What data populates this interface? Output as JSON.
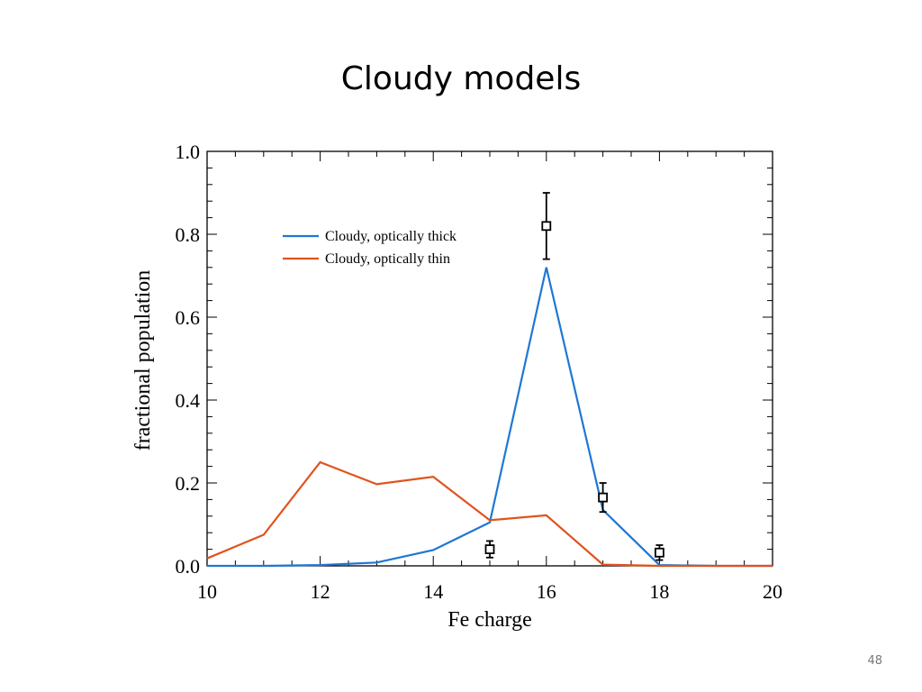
{
  "slide": {
    "title": "Cloudy models",
    "page_number": "48"
  },
  "colors": {
    "thick": "#1f77d4",
    "thin": "#e0521c",
    "axis": "#000000",
    "observed": "#000000"
  },
  "chart_data": {
    "type": "line",
    "title": "",
    "xlabel": "Fe charge",
    "ylabel": "fractional population",
    "xlim": [
      10,
      20
    ],
    "ylim": [
      0,
      1.0
    ],
    "xticks": [
      10,
      12,
      14,
      16,
      18,
      20
    ],
    "xtick_labels": [
      "10",
      "12",
      "14",
      "16",
      "18",
      "20"
    ],
    "yticks": [
      0,
      0.2,
      0.4,
      0.6,
      0.8,
      1.0
    ],
    "ytick_labels": [
      "0.0",
      "0.2",
      "0.4",
      "0.6",
      "0.8",
      "1.0"
    ],
    "grid": false,
    "legend_position": "upper-left",
    "series": [
      {
        "name": "Cloudy, optically thick",
        "color": "#1f77d4",
        "x": [
          10,
          11,
          12,
          13,
          14,
          15,
          16,
          17,
          18,
          19,
          20
        ],
        "y": [
          0.0,
          0.0,
          0.002,
          0.008,
          0.038,
          0.105,
          0.72,
          0.135,
          0.002,
          0.0,
          0.0
        ]
      },
      {
        "name": "Cloudy, optically thin",
        "color": "#e0521c",
        "x": [
          10,
          11,
          12,
          13,
          14,
          15,
          16,
          17,
          18,
          19,
          20
        ],
        "y": [
          0.018,
          0.075,
          0.25,
          0.197,
          0.215,
          0.11,
          0.122,
          0.003,
          0.0,
          0.0,
          0.0
        ]
      }
    ],
    "observations": {
      "x": [
        15,
        16,
        17,
        18
      ],
      "y": [
        0.04,
        0.82,
        0.165,
        0.032
      ],
      "err": [
        0.02,
        0.08,
        0.035,
        0.018
      ]
    }
  }
}
